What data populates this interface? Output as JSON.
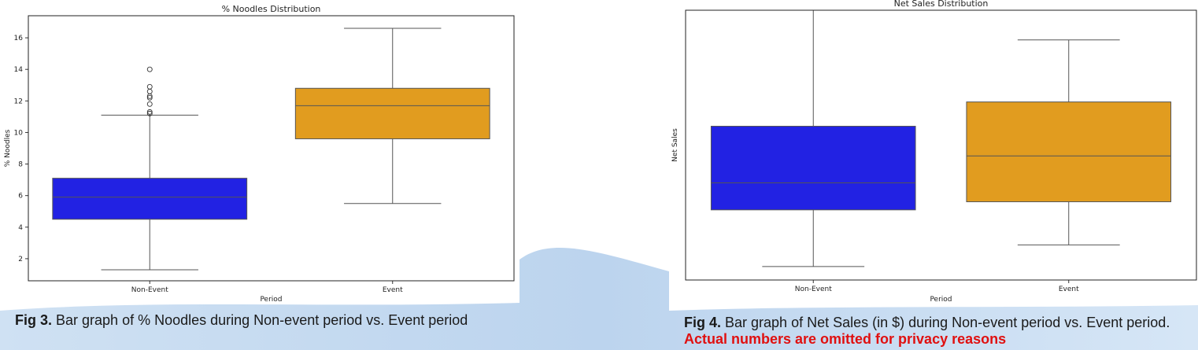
{
  "figures": [
    {
      "chart_data": {
        "type": "box",
        "title": "% Noodles Distribution",
        "xlabel": "Period",
        "ylabel": "% Noodles",
        "ylim": [
          0.6,
          17.4
        ],
        "yticks": [
          2,
          4,
          6,
          8,
          10,
          12,
          14,
          16
        ],
        "categories": [
          "Non-Event",
          "Event"
        ],
        "boxes": [
          {
            "category": "Non-Event",
            "whisker_low": 1.3,
            "q1": 4.5,
            "median": 5.9,
            "q3": 7.1,
            "whisker_high": 11.1,
            "outliers": [
              11.2,
              11.3,
              11.8,
              12.2,
              12.3,
              12.6,
              12.9,
              14.0
            ],
            "color": "#2222e3"
          },
          {
            "category": "Event",
            "whisker_low": 5.5,
            "q1": 9.6,
            "median": 11.7,
            "q3": 12.8,
            "whisker_high": 16.6,
            "outliers": [],
            "color": "#e19c1f"
          }
        ],
        "grid": false
      },
      "caption": {
        "label": "Fig 3.",
        "text": " Bar graph of % Noodles during Non-event period vs. Event period",
        "note": ""
      }
    },
    {
      "chart_data": {
        "type": "box",
        "title": "Net Sales Distribution",
        "xlabel": "Period",
        "ylabel": "Net Sales",
        "ylim": [
          0,
          100
        ],
        "yticks": [],
        "categories": [
          "Non-Event",
          "Event"
        ],
        "boxes": [
          {
            "category": "Non-Event",
            "whisker_low": 5,
            "q1": 26,
            "median": 36,
            "q3": 57,
            "whisker_high": 100,
            "outliers": [],
            "color": "#2222e3"
          },
          {
            "category": "Event",
            "whisker_low": 13,
            "q1": 29,
            "median": 46,
            "q3": 66,
            "whisker_high": 89,
            "outliers": [],
            "color": "#e19c1f"
          }
        ],
        "grid": false
      },
      "caption": {
        "label": "Fig 4.",
        "text": " Bar graph of Net Sales (in $) during Non-event period vs. Event period.",
        "note": " Actual numbers are omitted for privacy reasons"
      }
    }
  ]
}
